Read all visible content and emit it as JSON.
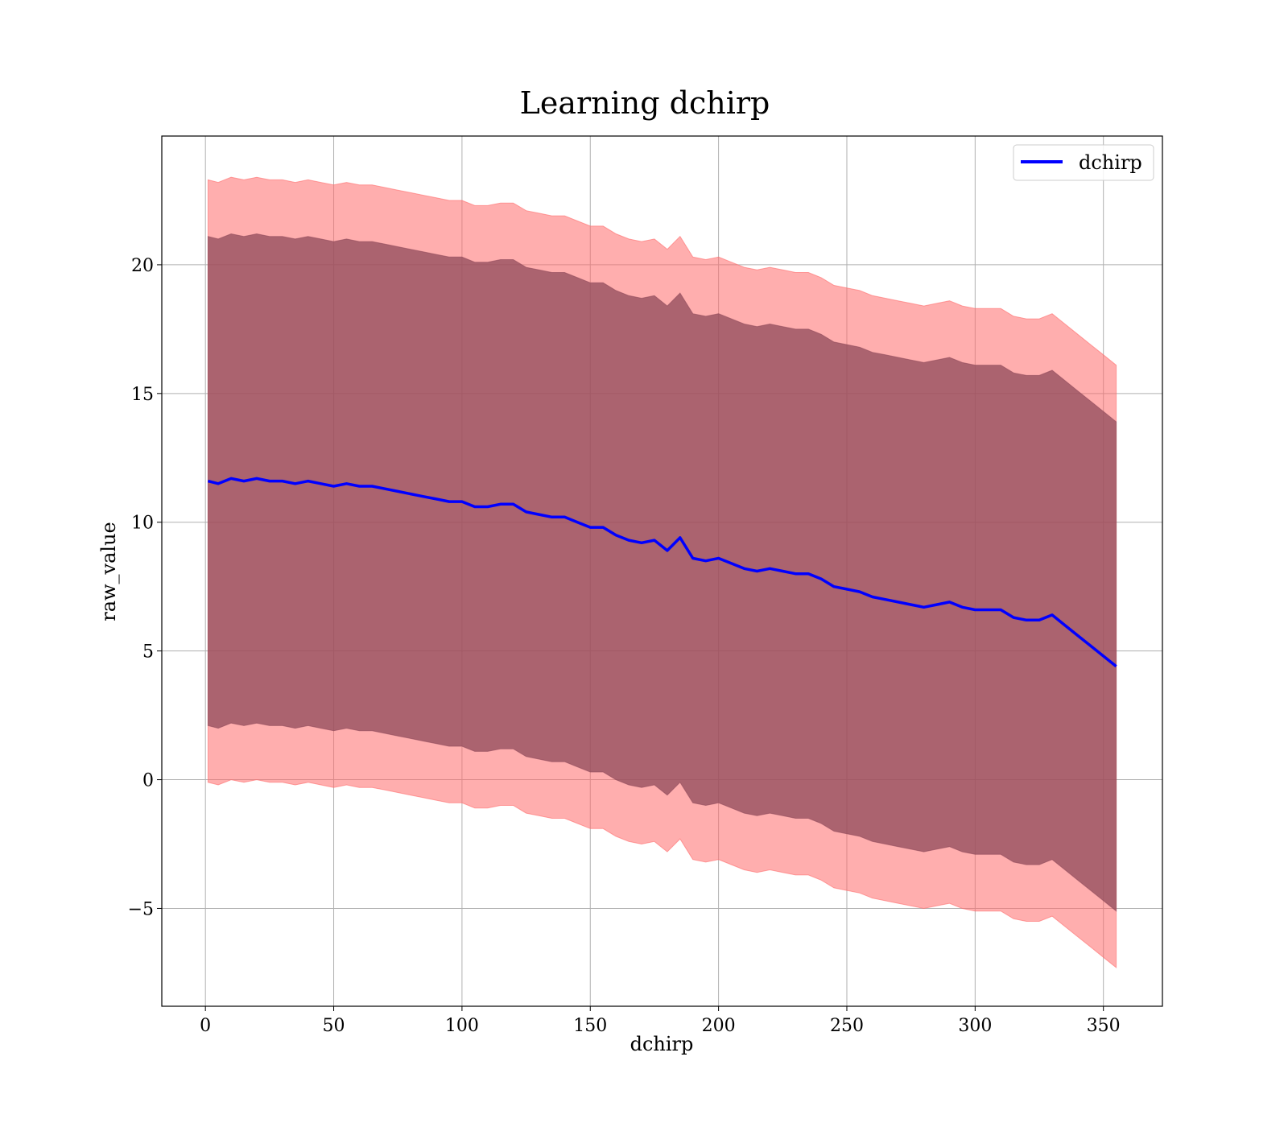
{
  "chart_data": {
    "type": "area",
    "title": "Learning dchirp",
    "xlabel": "dchirp",
    "ylabel": "raw_value",
    "xlim": [
      -17,
      373
    ],
    "ylim": [
      -8.8,
      25
    ],
    "grid": true,
    "legend_placement": "top-right",
    "x_ticks": [
      0,
      50,
      100,
      150,
      200,
      250,
      300,
      350
    ],
    "x_tick_labels": [
      "0",
      "50",
      "100",
      "150",
      "200",
      "250",
      "300",
      "350"
    ],
    "y_ticks": [
      -5,
      0,
      5,
      10,
      15,
      20
    ],
    "y_tick_labels": [
      "−5",
      "0",
      "5",
      "10",
      "15",
      "20"
    ],
    "series": [
      {
        "name": "dchirp",
        "color": "#0000ff",
        "x": [
          1,
          5,
          10,
          15,
          20,
          25,
          30,
          35,
          40,
          45,
          50,
          55,
          60,
          65,
          70,
          75,
          80,
          85,
          90,
          95,
          100,
          105,
          110,
          115,
          120,
          125,
          130,
          135,
          140,
          145,
          150,
          155,
          160,
          165,
          170,
          175,
          180,
          185,
          190,
          195,
          200,
          205,
          210,
          215,
          220,
          225,
          230,
          235,
          240,
          245,
          250,
          255,
          260,
          265,
          270,
          275,
          280,
          285,
          290,
          295,
          300,
          305,
          310,
          315,
          320,
          325,
          330,
          335,
          340,
          345,
          350,
          355
        ],
        "y": [
          11.6,
          11.5,
          11.7,
          11.6,
          11.7,
          11.6,
          11.6,
          11.5,
          11.6,
          11.5,
          11.4,
          11.5,
          11.4,
          11.4,
          11.3,
          11.2,
          11.1,
          11.0,
          10.9,
          10.8,
          10.8,
          10.6,
          10.6,
          10.7,
          10.7,
          10.4,
          10.3,
          10.2,
          10.2,
          10.0,
          9.8,
          9.8,
          9.5,
          9.3,
          9.2,
          9.3,
          8.9,
          9.4,
          8.6,
          8.5,
          8.6,
          8.4,
          8.2,
          8.1,
          8.2,
          8.1,
          8.0,
          8.0,
          7.8,
          7.5,
          7.4,
          7.3,
          7.1,
          7.0,
          6.9,
          6.8,
          6.7,
          6.8,
          6.9,
          6.7,
          6.6,
          6.6,
          6.6,
          6.3,
          6.2,
          6.2,
          6.4,
          6.0,
          5.6,
          5.2,
          4.8,
          4.4
        ]
      }
    ],
    "bands": [
      {
        "color": "#ff6b6b",
        "opacity": 0.55,
        "offset": 11.7
      },
      {
        "color": "#8f4a5a",
        "opacity": 0.75,
        "offset": 9.5
      }
    ]
  }
}
